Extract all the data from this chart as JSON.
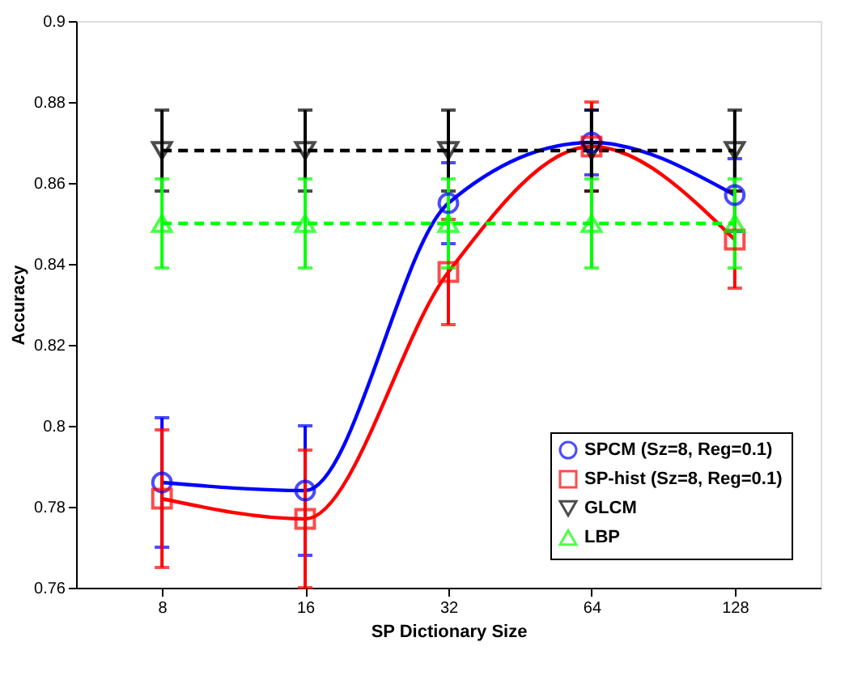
{
  "chart_data": {
    "type": "line",
    "xlabel": "SP Dictionary Size",
    "ylabel": "Accuracy",
    "categories": [
      "8",
      "16",
      "32",
      "64",
      "128"
    ],
    "ylim": [
      0.76,
      0.9
    ],
    "yticks": [
      0.76,
      0.78,
      0.8,
      0.82,
      0.84,
      0.86,
      0.88,
      0.9
    ],
    "legend": "bottom right",
    "grid": false,
    "series": [
      {
        "name": "SPCM (Sz=8, Reg=0.1)",
        "color": "#0000ff",
        "marker": "circle",
        "line_style": "solid",
        "values": [
          0.786,
          0.784,
          0.855,
          0.87,
          0.857
        ],
        "errors": [
          0.016,
          0.016,
          0.01,
          0.008,
          0.009
        ]
      },
      {
        "name": "SP-hist (Sz=8, Reg=0.1)",
        "color": "#ff0000",
        "marker": "square",
        "line_style": "solid",
        "values": [
          0.782,
          0.777,
          0.838,
          0.869,
          0.846
        ],
        "errors": [
          0.017,
          0.017,
          0.013,
          0.011,
          0.012
        ]
      },
      {
        "name": "GLCM",
        "color": "#000000",
        "marker": "triangle-down",
        "line_style": "dashed",
        "values": [
          0.868,
          0.868,
          0.868,
          0.868,
          0.868
        ],
        "errors": [
          0.01,
          0.01,
          0.01,
          0.01,
          0.01
        ]
      },
      {
        "name": "LBP",
        "color": "#00ff00",
        "marker": "triangle",
        "line_style": "dashed",
        "values": [
          0.85,
          0.85,
          0.85,
          0.85,
          0.85
        ],
        "errors": [
          0.011,
          0.011,
          0.011,
          0.011,
          0.011
        ]
      }
    ]
  }
}
